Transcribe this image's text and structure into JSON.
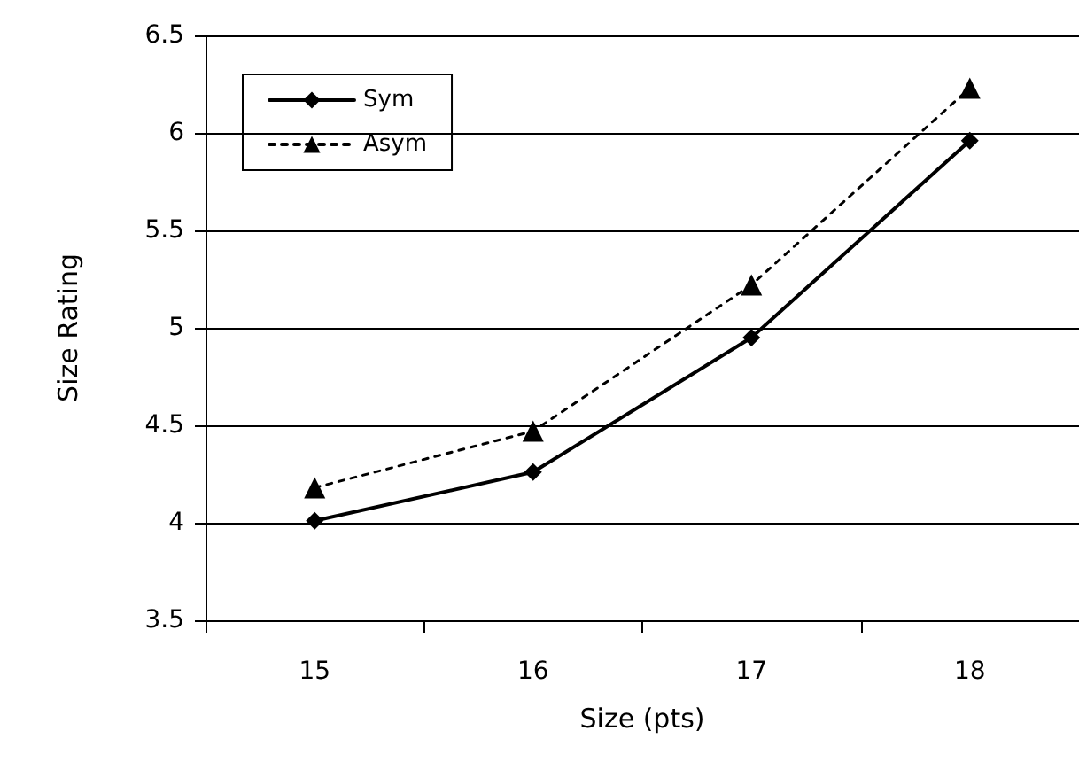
{
  "chart_data": {
    "type": "line",
    "xlabel": "Size (pts)",
    "ylabel": "Size Rating",
    "categories": [
      "15",
      "16",
      "17",
      "18"
    ],
    "series": [
      {
        "name": "Sym",
        "color": "#000000",
        "marker": "diamond",
        "line_style": "solid",
        "values": [
          4.01,
          4.26,
          4.95,
          5.96
        ]
      },
      {
        "name": "Asym",
        "color": "#000000",
        "marker": "triangle",
        "line_style": "dashed",
        "values": [
          4.18,
          4.47,
          5.22,
          6.23
        ]
      }
    ],
    "ylim": [
      3.5,
      6.5
    ],
    "yticks": [
      3.5,
      4,
      4.5,
      5,
      5.5,
      6,
      6.5
    ],
    "grid": "y",
    "legend": "top left"
  }
}
